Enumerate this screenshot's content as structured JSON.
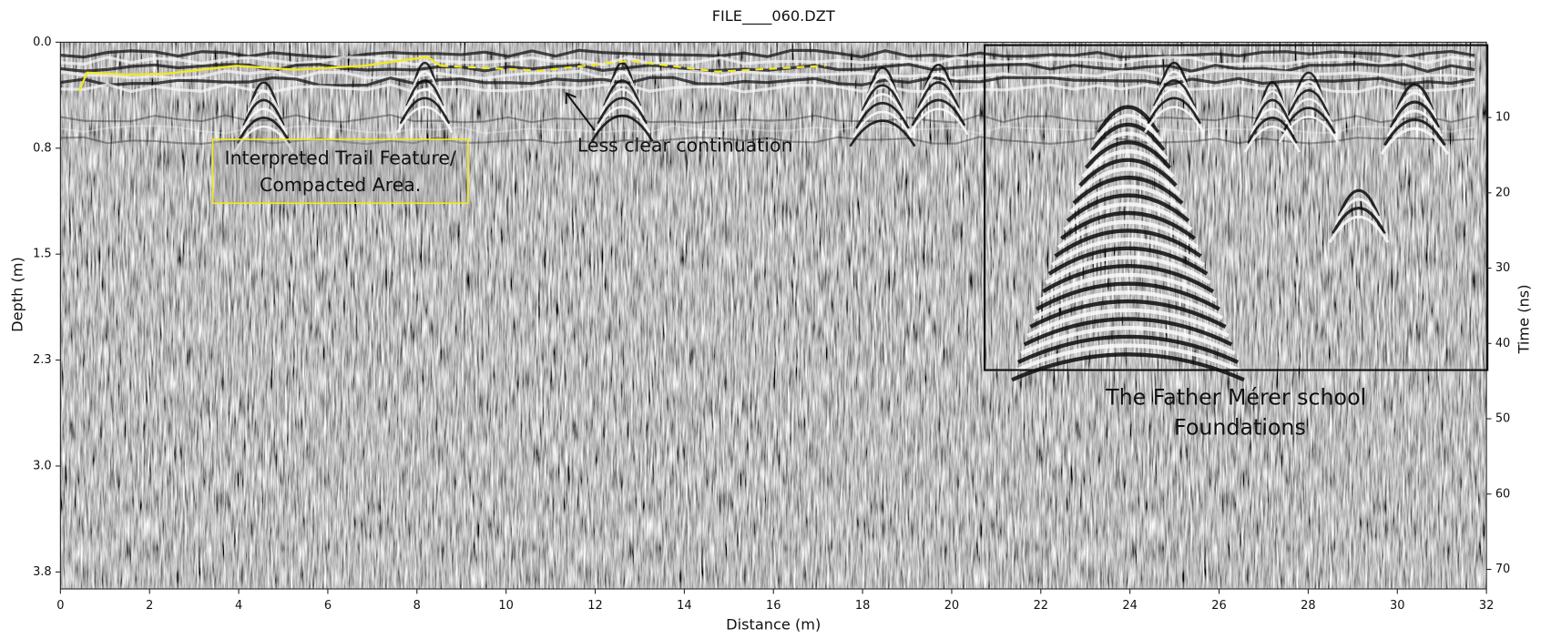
{
  "chart_data": {
    "type": "radargram",
    "title": "FILE____060.DZT",
    "xlabel": "Distance (m)",
    "ylabel": "Depth (m)",
    "y2label": "Time (ns)",
    "xlim": [
      0,
      32
    ],
    "xticks": [
      0,
      2,
      4,
      6,
      8,
      10,
      12,
      14,
      16,
      18,
      20,
      22,
      24,
      26,
      28,
      30,
      32
    ],
    "ylim": [
      0,
      3.87
    ],
    "yticks": [
      {
        "value": 0,
        "label": "0.0"
      },
      {
        "value": 0.75,
        "label": "0.8"
      },
      1.5,
      {
        "value": 2.25,
        "label": "2.3"
      },
      {
        "value": 3,
        "label": "3.0"
      },
      {
        "value": 3.75,
        "label": "3.8"
      }
    ],
    "y2lim": [
      0,
      72.6
    ],
    "y2ticks": [
      10,
      20,
      30,
      40,
      50,
      60,
      70
    ],
    "annotations": {
      "trail": [
        "Interpreted Trail Feature/",
        "Compacted Area."
      ],
      "continuation": "Less clear continuation",
      "foundations": [
        "The Father Mérer school",
        "Foundations"
      ]
    }
  }
}
